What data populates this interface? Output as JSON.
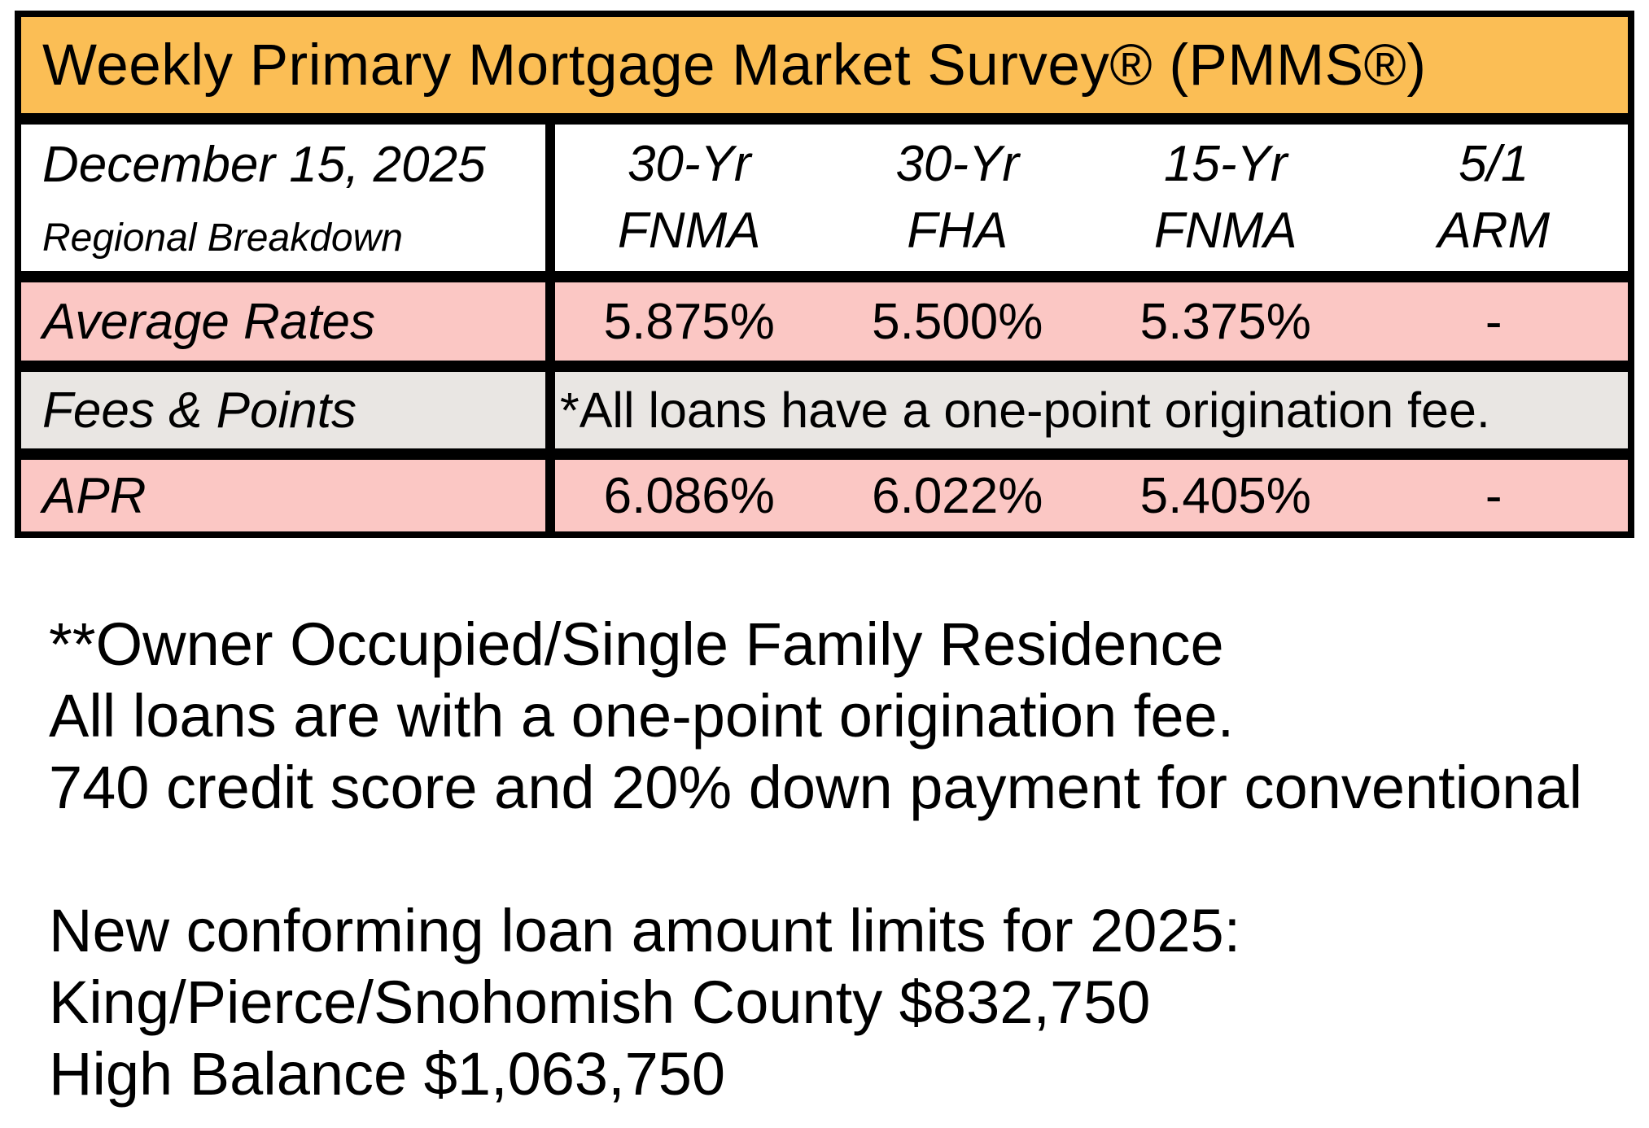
{
  "table": {
    "title": "Weekly Primary Mortgage Market Survey® (PMMS®)",
    "header": {
      "date": "December 15, 2025",
      "subtitle": "Regional Breakdown",
      "columns": [
        {
          "line1": "30-Yr",
          "line2": "FNMA"
        },
        {
          "line1": "30-Yr",
          "line2": "FHA"
        },
        {
          "line1": "15-Yr",
          "line2": "FNMA"
        },
        {
          "line1": "5/1",
          "line2": "ARM"
        }
      ]
    },
    "rows": {
      "average_rates": {
        "label": "Average Rates",
        "values": [
          "5.875%",
          "5.500%",
          "5.375%",
          "-"
        ]
      },
      "fees_points": {
        "label": "Fees & Points",
        "note": "*All loans have a one-point origination fee."
      },
      "apr": {
        "label": "APR",
        "values": [
          "6.086%",
          "6.022%",
          "5.405%",
          "-"
        ]
      }
    },
    "colors": {
      "title_bg": "#FBBE55",
      "rate_row_bg": "#FBC7C4",
      "fees_row_bg": "#E9E6E3",
      "border": "#000000"
    }
  },
  "notes": {
    "line1": "**Owner Occupied/Single Family Residence",
    "line2": "All loans are with a one-point origination fee.",
    "line3": "740 credit score and 20% down payment for conventional",
    "limits_heading": "New conforming loan amount limits for 2025:",
    "limit1": "King/Pierce/Snohomish County $832,750",
    "limit2": "High Balance $1,063,750"
  }
}
